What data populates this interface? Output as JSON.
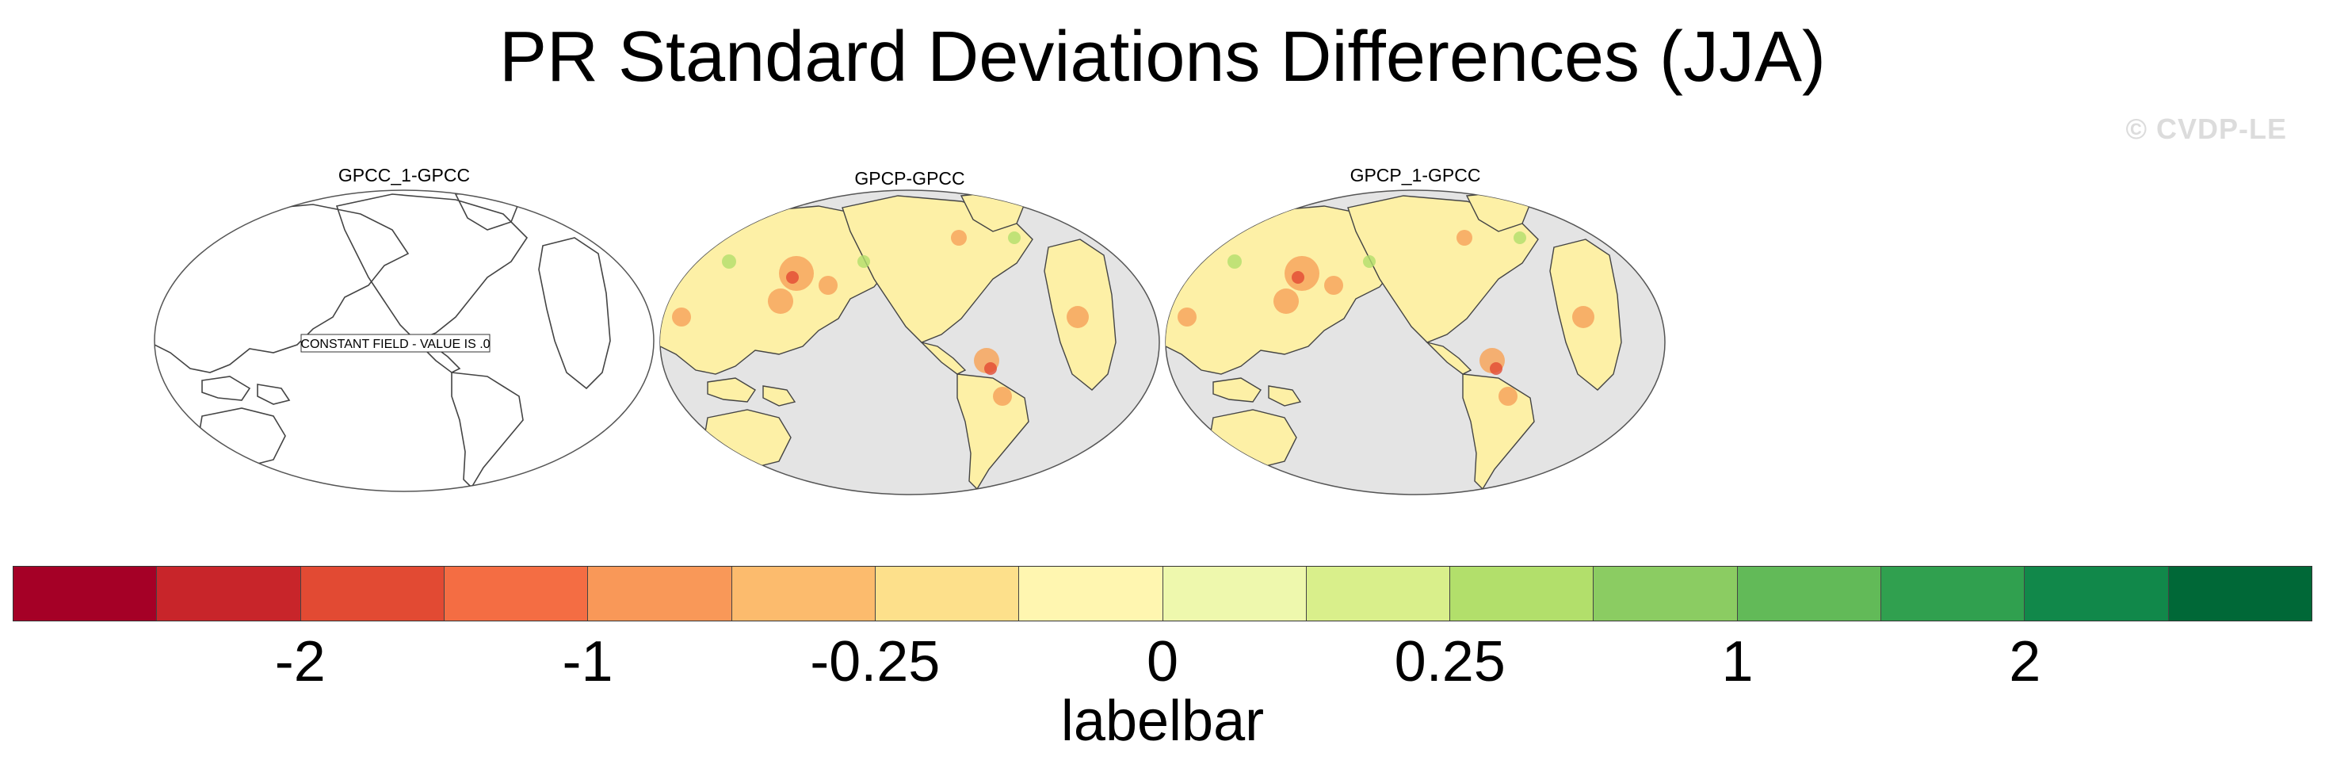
{
  "title": "PR Standard Deviations Differences (JJA)",
  "watermark": "© CVDP-LE",
  "panels": [
    {
      "title": "GPCC_1-GPCC",
      "note": "CONSTANT FIELD - VALUE IS .0",
      "filled": false
    },
    {
      "title": "GPCP-GPCC",
      "filled": true
    },
    {
      "title": "GPCP_1-GPCC",
      "filled": true
    }
  ],
  "colorbar": {
    "colors": [
      "#a50026",
      "#c8252a",
      "#e24a33",
      "#f46d43",
      "#f99858",
      "#fcbb6d",
      "#fde08b",
      "#fff6b0",
      "#eef8ad",
      "#d9ef8b",
      "#b2df6b",
      "#8bcc62",
      "#62ba58",
      "#30a04f",
      "#11884a",
      "#006837"
    ],
    "ticks": [
      {
        "label": "-2",
        "boundary": 2
      },
      {
        "label": "-1",
        "boundary": 4
      },
      {
        "label": "-0.25",
        "boundary": 6
      },
      {
        "label": "0",
        "boundary": 8
      },
      {
        "label": "0.25",
        "boundary": 10
      },
      {
        "label": "1",
        "boundary": 12
      },
      {
        "label": "2",
        "boundary": 14
      }
    ],
    "label": "labelbar"
  }
}
